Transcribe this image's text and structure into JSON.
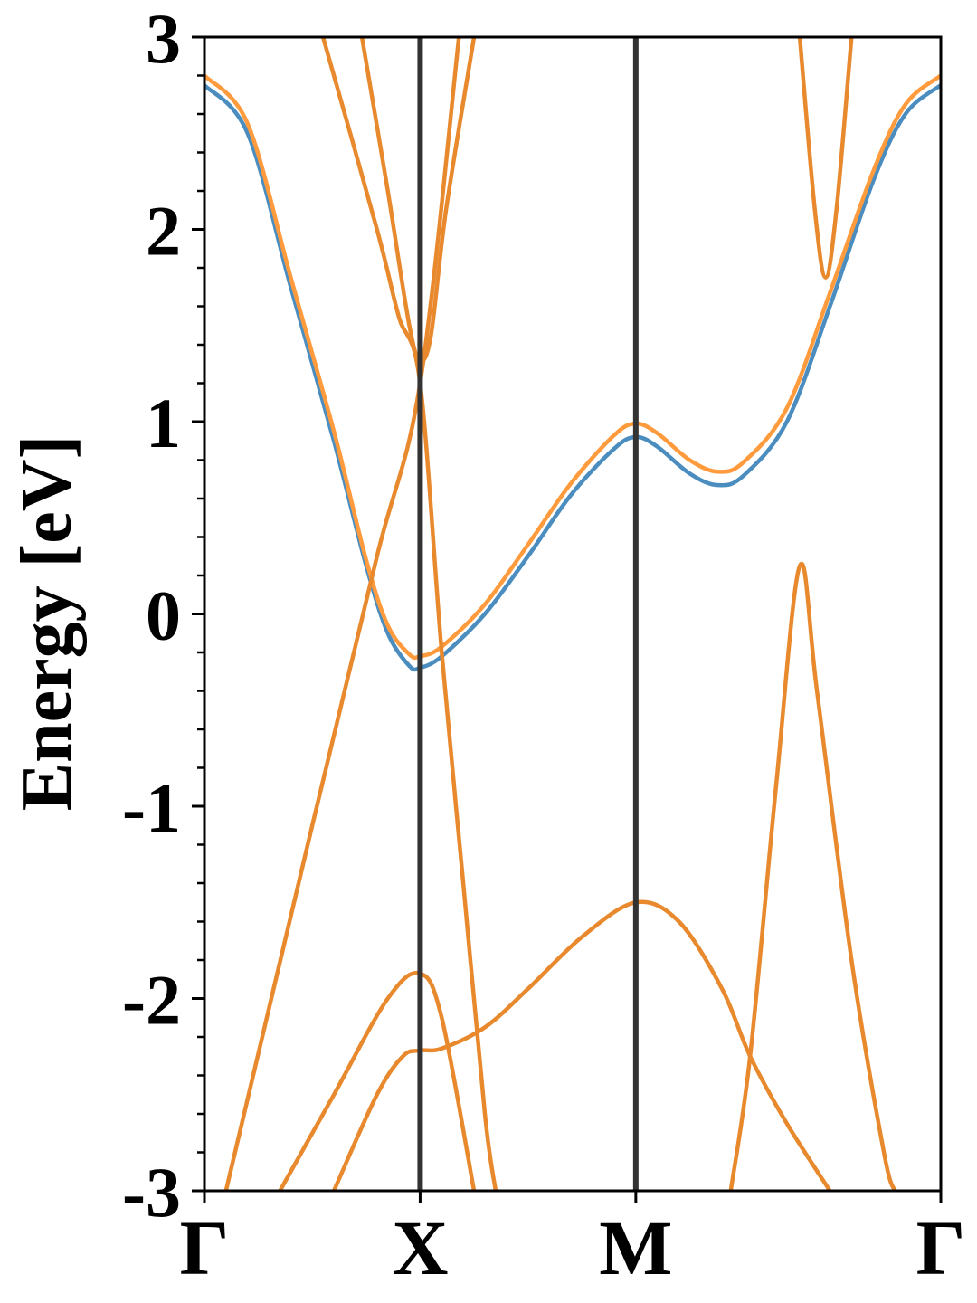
{
  "chart_data": {
    "type": "line",
    "title": "",
    "xlabel": "",
    "ylabel": "Energy [eV]",
    "ylim": [
      -3,
      3
    ],
    "y_ticks": [
      "3",
      "2",
      "1",
      "0",
      "-1",
      "-2",
      "-3"
    ],
    "y_tick_values": [
      3,
      2,
      1,
      0,
      -1,
      -2,
      -3
    ],
    "y_minor_step": 0.2,
    "k_ticks": [
      "Γ",
      "X",
      "M",
      "Γ"
    ],
    "k_tick_positions": [
      0,
      1,
      2,
      3.414
    ],
    "grid": false,
    "colors": {
      "series_a": "#4b8dbf",
      "series_b": "#ff9b3d",
      "shared": "#e8892e",
      "separator": "#333333"
    },
    "series": [
      {
        "key": "a",
        "points": [
          [
            0,
            2.75
          ],
          [
            0.2,
            2.5
          ],
          [
            0.4,
            1.7
          ],
          [
            0.6,
            0.9
          ],
          [
            0.75,
            0.25
          ],
          [
            0.85,
            -0.1
          ],
          [
            0.95,
            -0.27
          ],
          [
            1,
            -0.28
          ],
          [
            1.1,
            -0.22
          ],
          [
            1.3,
            0
          ],
          [
            1.5,
            0.3
          ],
          [
            1.7,
            0.62
          ],
          [
            1.9,
            0.86
          ],
          [
            2,
            0.92
          ],
          [
            2.1,
            0.87
          ],
          [
            2.25,
            0.73
          ],
          [
            2.38,
            0.67
          ],
          [
            2.5,
            0.72
          ],
          [
            2.7,
            1.0
          ],
          [
            2.9,
            1.6
          ],
          [
            3.1,
            2.25
          ],
          [
            3.25,
            2.6
          ],
          [
            3.414,
            2.75
          ]
        ]
      },
      {
        "key": "b",
        "points": [
          [
            0,
            2.8
          ],
          [
            0.2,
            2.55
          ],
          [
            0.4,
            1.75
          ],
          [
            0.6,
            0.95
          ],
          [
            0.75,
            0.28
          ],
          [
            0.85,
            -0.06
          ],
          [
            0.95,
            -0.21
          ],
          [
            1,
            -0.22
          ],
          [
            1.1,
            -0.17
          ],
          [
            1.3,
            0.05
          ],
          [
            1.5,
            0.36
          ],
          [
            1.7,
            0.68
          ],
          [
            1.9,
            0.93
          ],
          [
            2,
            0.99
          ],
          [
            2.1,
            0.94
          ],
          [
            2.25,
            0.8
          ],
          [
            2.38,
            0.74
          ],
          [
            2.5,
            0.79
          ],
          [
            2.7,
            1.07
          ],
          [
            2.9,
            1.67
          ],
          [
            3.1,
            2.3
          ],
          [
            3.25,
            2.65
          ],
          [
            3.414,
            2.8
          ]
        ]
      },
      {
        "key": "shared",
        "points": [
          [
            0.1,
            -3
          ],
          [
            0.5,
            -1.1
          ],
          [
            0.8,
            0.3
          ],
          [
            1,
            1.2
          ],
          [
            1.18,
            3
          ]
        ]
      },
      {
        "key": "shared",
        "points": [
          [
            0.55,
            3
          ],
          [
            0.8,
            2.0
          ],
          [
            0.9,
            1.55
          ],
          [
            1,
            1.2
          ],
          [
            1.1,
            -0.2
          ],
          [
            1.2,
            -1.4
          ],
          [
            1.3,
            -2.6
          ],
          [
            1.35,
            -3
          ]
        ]
      },
      {
        "key": "shared",
        "points": [
          [
            0.73,
            3
          ],
          [
            0.85,
            2.2
          ],
          [
            0.95,
            1.5
          ],
          [
            1,
            1.32
          ],
          [
            1.05,
            1.45
          ],
          [
            1.12,
            2.1
          ],
          [
            1.25,
            3
          ]
        ]
      },
      {
        "key": "shared",
        "points": [
          [
            0.35,
            -3
          ],
          [
            0.6,
            -2.5
          ],
          [
            0.85,
            -2.0
          ],
          [
            1,
            -1.87
          ],
          [
            1.1,
            -2.1
          ],
          [
            1.25,
            -3
          ]
        ]
      },
      {
        "key": "shared",
        "points": [
          [
            0.6,
            -3
          ],
          [
            0.8,
            -2.5
          ],
          [
            0.92,
            -2.3
          ],
          [
            1,
            -2.27
          ],
          [
            1.1,
            -2.26
          ],
          [
            1.3,
            -2.15
          ],
          [
            1.5,
            -1.95
          ],
          [
            1.75,
            -1.68
          ],
          [
            2,
            -1.5
          ],
          [
            2.2,
            -1.6
          ],
          [
            2.4,
            -1.95
          ],
          [
            2.53,
            -2.3
          ],
          [
            2.7,
            -2.65
          ],
          [
            2.9,
            -3
          ]
        ]
      },
      {
        "key": "shared",
        "points": [
          [
            2.44,
            -3
          ],
          [
            2.53,
            -2.3
          ],
          [
            2.65,
            -0.9
          ],
          [
            2.76,
            0.25
          ],
          [
            2.84,
            -0.4
          ],
          [
            3.0,
            -1.8
          ],
          [
            3.15,
            -2.8
          ],
          [
            3.2,
            -3
          ]
        ]
      },
      {
        "key": "shared",
        "points": [
          [
            2.76,
            3
          ],
          [
            2.83,
            2.1
          ],
          [
            2.88,
            1.75
          ],
          [
            2.93,
            2.1
          ],
          [
            3.0,
            3
          ]
        ]
      }
    ]
  }
}
